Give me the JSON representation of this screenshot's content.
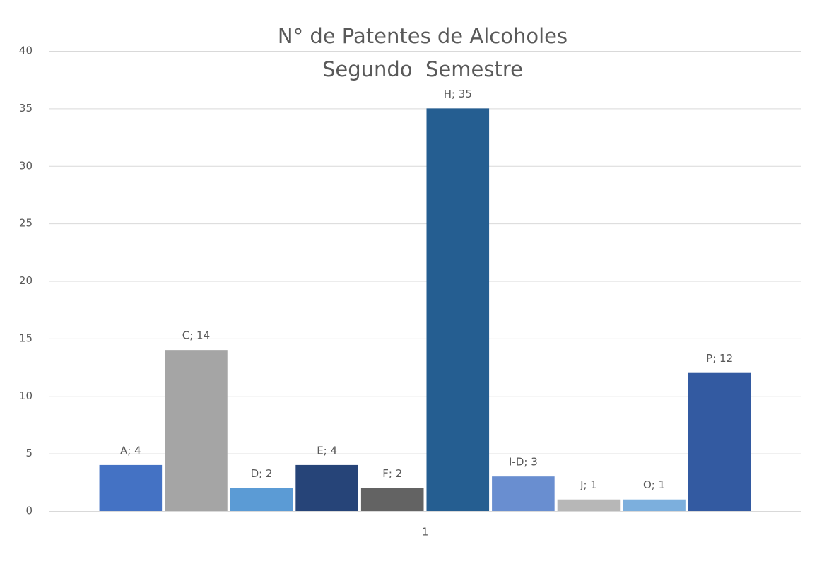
{
  "chart_data": {
    "type": "bar",
    "title": [
      "N° de Patentes de Alcoholes",
      "Segundo  Semestre"
    ],
    "categories": [
      "1"
    ],
    "series": [
      {
        "color": "#4472c4",
        "values": [
          4
        ],
        "value_labels": [
          "A; 4"
        ]
      },
      {
        "color": "#a5a5a5",
        "values": [
          14
        ],
        "value_labels": [
          "C; 14"
        ]
      },
      {
        "color": "#5b9bd5",
        "values": [
          2
        ],
        "value_labels": [
          "D; 2"
        ]
      },
      {
        "color": "#264478",
        "values": [
          4
        ],
        "value_labels": [
          "E; 4"
        ]
      },
      {
        "color": "#636363",
        "values": [
          2
        ],
        "value_labels": [
          "F; 2"
        ]
      },
      {
        "color": "#255e91",
        "values": [
          35
        ],
        "value_labels": [
          "H; 35"
        ]
      },
      {
        "color": "#698ed0",
        "values": [
          3
        ],
        "value_labels": [
          "I-D; 3"
        ]
      },
      {
        "color": "#b7b7b7",
        "values": [
          1
        ],
        "value_labels": [
          "J; 1"
        ]
      },
      {
        "color": "#7cafdd",
        "values": [
          1
        ],
        "value_labels": [
          "O; 1"
        ]
      },
      {
        "color": "#335aa1",
        "values": [
          12
        ],
        "value_labels": [
          "P; 12"
        ]
      }
    ],
    "ylim": [
      0,
      40
    ],
    "yticks": [
      0,
      5,
      10,
      15,
      20,
      25,
      30,
      35,
      40
    ],
    "grid": true
  }
}
